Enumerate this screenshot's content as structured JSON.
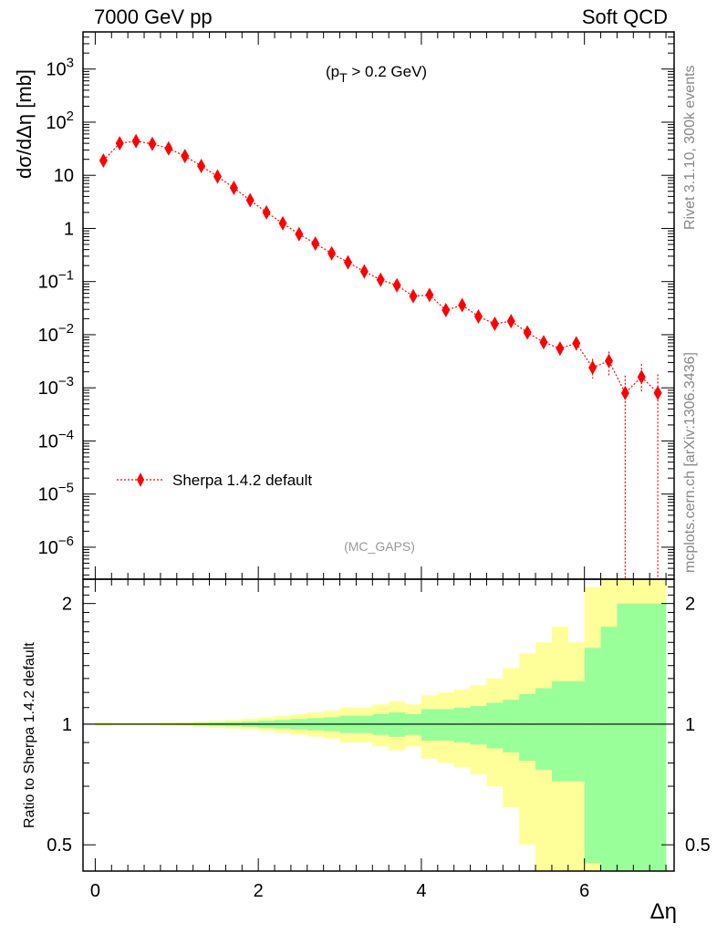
{
  "header": {
    "left": "7000 GeV pp",
    "right": "Soft QCD"
  },
  "side_labels": {
    "top": "Rivet 3.1.10,  300k events",
    "bottom": "mcplots.cern.ch [arXiv:1306.3436]"
  },
  "chart_data": [
    {
      "type": "scatter",
      "panel": "main",
      "annotation": "(p_T > 0.2 GeV)",
      "watermark": "(MC_GAPS)",
      "ylabel": "dσ/dΔη [mb]",
      "yscale": "log",
      "ylim": [
        2.5e-07,
        5000
      ],
      "xlim": [
        -0.15,
        7.1
      ],
      "ytick_labels": [
        "10^3",
        "10^2",
        "10",
        "1",
        "10^-1",
        "10^-2",
        "10^-3",
        "10^-4",
        "10^-5",
        "10^-6"
      ],
      "legend": {
        "label": "Sherpa 1.4.2 default",
        "placement": "bottom-left"
      },
      "series": [
        {
          "name": "Sherpa 1.4.2 default",
          "color": "#ff0000",
          "marker": "diamond",
          "line": "dotted",
          "x": [
            0.1,
            0.3,
            0.5,
            0.7,
            0.9,
            1.1,
            1.3,
            1.5,
            1.7,
            1.9,
            2.1,
            2.3,
            2.5,
            2.7,
            2.9,
            3.1,
            3.3,
            3.5,
            3.7,
            3.9,
            4.1,
            4.3,
            4.5,
            4.7,
            4.9,
            5.1,
            5.3,
            5.5,
            5.7,
            5.9,
            6.1,
            6.3,
            6.5,
            6.7,
            6.9
          ],
          "y": [
            19,
            40,
            44,
            39,
            32,
            23,
            15,
            9.5,
            5.8,
            3.4,
            2.0,
            1.25,
            0.78,
            0.52,
            0.34,
            0.23,
            0.155,
            0.108,
            0.085,
            0.053,
            0.056,
            0.029,
            0.036,
            0.022,
            0.016,
            0.018,
            0.011,
            0.0072,
            0.0055,
            0.0069,
            0.0024,
            0.0032,
            0.0008,
            0.0016,
            0.0008
          ],
          "yerr_low": [
            0,
            0,
            0,
            0,
            0,
            0,
            0,
            0,
            0,
            0,
            0,
            0,
            0,
            0,
            0,
            0,
            0,
            0,
            0,
            0,
            0,
            0,
            0,
            0,
            0.002,
            0.002,
            0.002,
            0.0016,
            0.0016,
            0.0019,
            0.0009,
            0.0016,
            0.0008,
            0.0008,
            0.0008
          ],
          "yerr_high": [
            0,
            0,
            0,
            0,
            0,
            0,
            0,
            0,
            0,
            0,
            0,
            0,
            0,
            0,
            0,
            0,
            0,
            0,
            0,
            0,
            0,
            0,
            0,
            0,
            0.002,
            0.002,
            0.002,
            0.0016,
            0.0016,
            0.0019,
            0.0011,
            0.0016,
            0.0009,
            0.0012,
            0.001
          ]
        }
      ]
    },
    {
      "type": "area",
      "panel": "ratio",
      "ylabel": "Ratio to Sherpa 1.4.2 default",
      "xlabel": "Δη",
      "yscale": "log",
      "ylim": [
        0.43,
        2.3
      ],
      "xlim": [
        -0.15,
        7.1
      ],
      "xticks": [
        0,
        2,
        4,
        6
      ],
      "yticks": [
        0.5,
        1,
        2
      ],
      "reference": 1,
      "bin_edges": [
        0,
        0.2,
        0.4,
        0.6,
        0.8,
        1.0,
        1.2,
        1.4,
        1.6,
        1.8,
        2.0,
        2.2,
        2.4,
        2.6,
        2.8,
        3.0,
        3.2,
        3.4,
        3.6,
        3.8,
        4.0,
        4.2,
        4.4,
        4.6,
        4.8,
        5.0,
        5.2,
        5.4,
        5.6,
        5.8,
        6.0,
        6.2,
        6.4,
        6.6,
        6.8,
        7.0
      ],
      "bands": [
        {
          "name": "stat",
          "color": "#99ff99",
          "upper": [
            1.005,
            1.004,
            1.004,
            1.004,
            1.005,
            1.006,
            1.008,
            1.01,
            1.012,
            1.015,
            1.02,
            1.025,
            1.03,
            1.035,
            1.04,
            1.05,
            1.05,
            1.06,
            1.07,
            1.06,
            1.09,
            1.09,
            1.1,
            1.11,
            1.13,
            1.15,
            1.19,
            1.23,
            1.28,
            1.28,
            1.55,
            1.75,
            2.0,
            2.0,
            2.0
          ],
          "lower": [
            0.995,
            0.996,
            0.996,
            0.996,
            0.995,
            0.994,
            0.992,
            0.99,
            0.988,
            0.985,
            0.98,
            0.975,
            0.97,
            0.965,
            0.96,
            0.95,
            0.95,
            0.94,
            0.93,
            0.94,
            0.91,
            0.91,
            0.9,
            0.89,
            0.87,
            0.85,
            0.81,
            0.77,
            0.72,
            0.72,
            0.45,
            0.25,
            0.0,
            0.0,
            0.0
          ]
        },
        {
          "name": "total",
          "color": "#ffff99",
          "upper": [
            1.01,
            1.008,
            1.008,
            1.008,
            1.01,
            1.012,
            1.016,
            1.02,
            1.025,
            1.03,
            1.04,
            1.05,
            1.06,
            1.07,
            1.08,
            1.1,
            1.1,
            1.12,
            1.14,
            1.12,
            1.18,
            1.2,
            1.22,
            1.25,
            1.3,
            1.38,
            1.5,
            1.6,
            1.75,
            1.6,
            2.2,
            2.4,
            2.4,
            2.4,
            2.4
          ],
          "lower": [
            0.99,
            0.992,
            0.992,
            0.992,
            0.99,
            0.988,
            0.984,
            0.98,
            0.975,
            0.97,
            0.96,
            0.95,
            0.94,
            0.93,
            0.92,
            0.9,
            0.9,
            0.88,
            0.86,
            0.88,
            0.82,
            0.8,
            0.78,
            0.75,
            0.7,
            0.62,
            0.5,
            0.4,
            0.25,
            0.4,
            0.0,
            0.0,
            0.0,
            0.0,
            0.0
          ]
        }
      ]
    }
  ]
}
